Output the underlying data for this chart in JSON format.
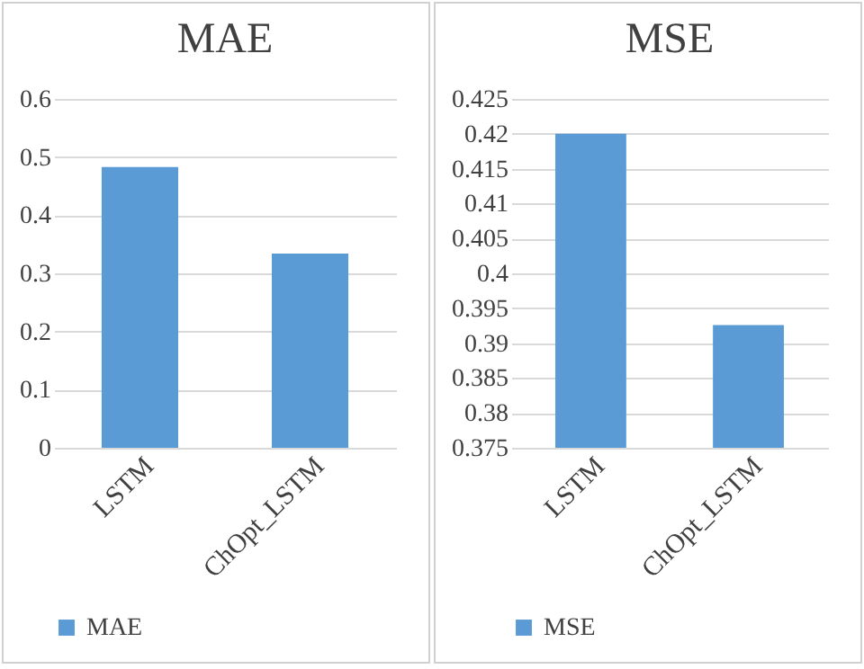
{
  "chart_data": [
    {
      "type": "bar",
      "title": "MAE",
      "categories": [
        "LSTM",
        "ChOpt_LSTM"
      ],
      "series": [
        {
          "name": "MAE",
          "color": "#5b9bd5",
          "values": [
            0.483,
            0.334
          ]
        }
      ],
      "ylim": [
        0,
        0.6
      ],
      "yticks": [
        0,
        0.1,
        0.2,
        0.3,
        0.4,
        0.5,
        0.6
      ],
      "grid": "y",
      "legend": "bottom"
    },
    {
      "type": "bar",
      "title": "MSE",
      "categories": [
        "LSTM",
        "ChOpt_LSTM"
      ],
      "series": [
        {
          "name": "MSE",
          "color": "#5b9bd5",
          "values": [
            0.42,
            0.3926
          ]
        }
      ],
      "ylim": [
        0.375,
        0.425
      ],
      "yticks": [
        0.375,
        0.38,
        0.385,
        0.39,
        0.395,
        0.4,
        0.405,
        0.41,
        0.415,
        0.42,
        0.425
      ],
      "grid": "y",
      "legend": "bottom"
    }
  ]
}
